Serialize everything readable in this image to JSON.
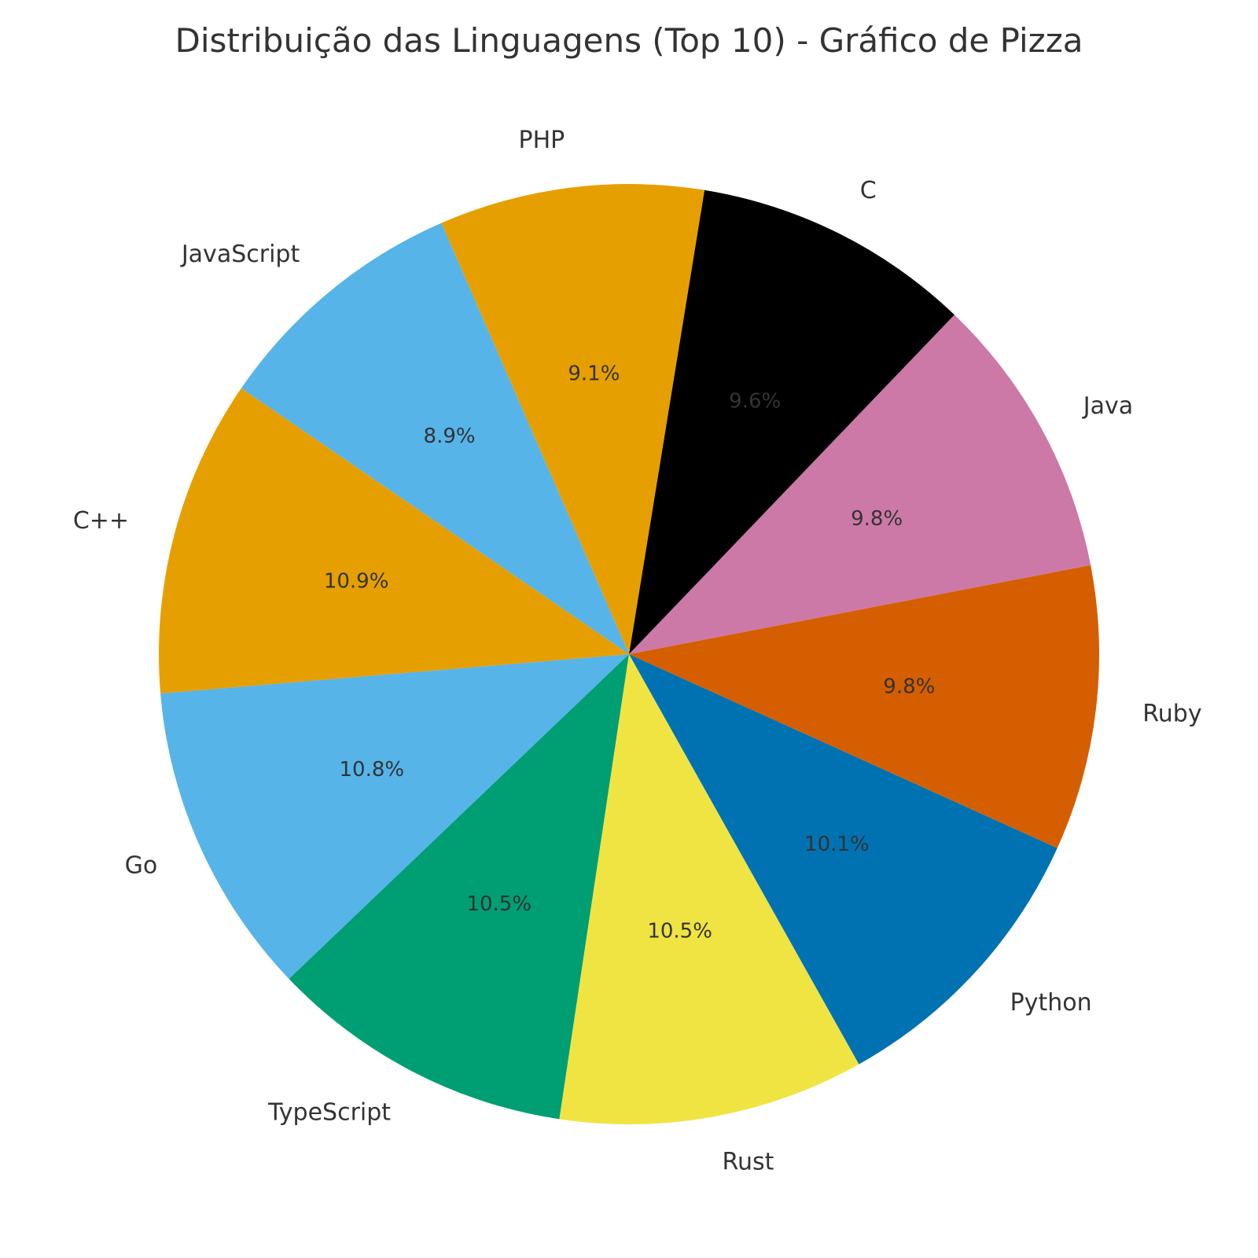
{
  "chart_data": {
    "type": "pie",
    "title": "Distribuição das Linguagens (Top 10) - Gráfico de Pizza",
    "start_angle_deg": 184.8,
    "direction": "counterclockwise",
    "slices": [
      {
        "label": "Go",
        "value": 10.8,
        "pct_label": "10.8%",
        "color": "#56B4E9"
      },
      {
        "label": "TypeScript",
        "value": 10.5,
        "pct_label": "10.5%",
        "color": "#009E73"
      },
      {
        "label": "Rust",
        "value": 10.5,
        "pct_label": "10.5%",
        "color": "#F0E442"
      },
      {
        "label": "Python",
        "value": 10.1,
        "pct_label": "10.1%",
        "color": "#0072B2"
      },
      {
        "label": "Ruby",
        "value": 9.8,
        "pct_label": "9.8%",
        "color": "#D55E00"
      },
      {
        "label": "Java",
        "value": 9.8,
        "pct_label": "9.8%",
        "color": "#CC79A7"
      },
      {
        "label": "C",
        "value": 9.6,
        "pct_label": "9.6%",
        "color": "#000000"
      },
      {
        "label": "PHP",
        "value": 9.1,
        "pct_label": "9.1%",
        "color": "#E69F00"
      },
      {
        "label": "JavaScript",
        "value": 8.9,
        "pct_label": "8.9%",
        "color": "#56B4E9"
      },
      {
        "label": "C++",
        "value": 10.9,
        "pct_label": "10.9%",
        "color": "#E69F00"
      }
    ]
  }
}
